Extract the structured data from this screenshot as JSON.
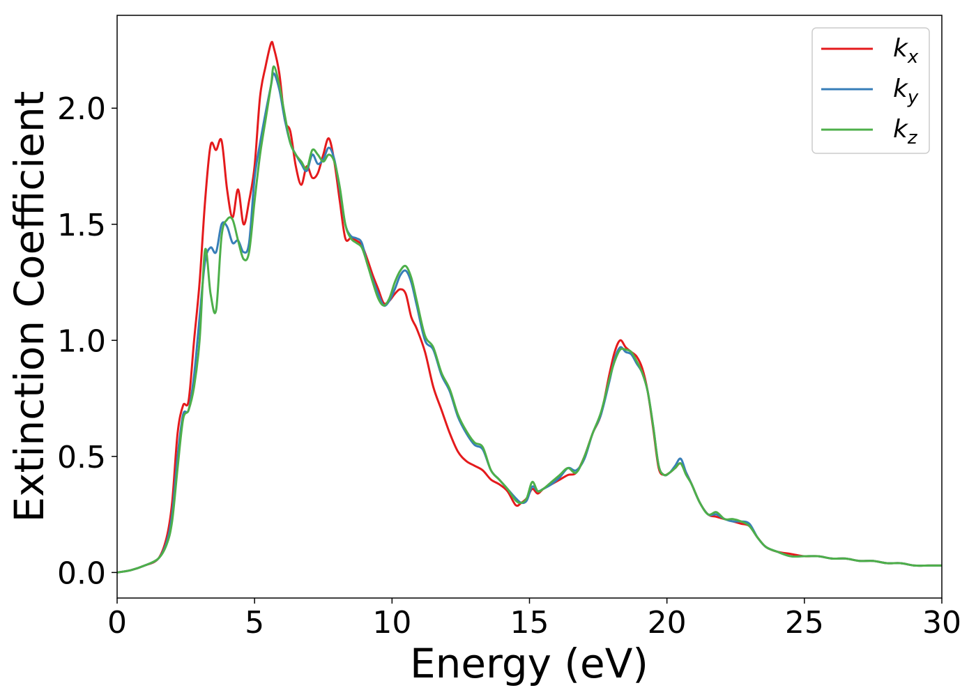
{
  "chart_data": {
    "type": "line",
    "xlabel": "Energy (eV)",
    "ylabel": "Extinction Coefficient",
    "xlim": [
      0,
      30
    ],
    "ylim": [
      -0.11,
      2.4
    ],
    "xticks": [
      0,
      5,
      10,
      15,
      20,
      25,
      30
    ],
    "xtick_labels": [
      "0",
      "5",
      "10",
      "15",
      "20",
      "25",
      "30"
    ],
    "yticks": [
      0.0,
      0.5,
      1.0,
      1.5,
      2.0
    ],
    "ytick_labels": [
      "0.0",
      "0.5",
      "1.0",
      "1.5",
      "2.0"
    ],
    "grid": false,
    "legend_position": "top-right",
    "legend": [
      {
        "base": "k",
        "sub": "x"
      },
      {
        "base": "k",
        "sub": "y"
      },
      {
        "base": "k",
        "sub": "z"
      }
    ],
    "series": [
      {
        "name": "kx",
        "color": "#e41a1c",
        "x": [
          0,
          0.5,
          1.0,
          1.5,
          1.8,
          2.0,
          2.2,
          2.4,
          2.6,
          2.8,
          3.0,
          3.2,
          3.4,
          3.6,
          3.8,
          4.0,
          4.2,
          4.4,
          4.6,
          4.8,
          5.0,
          5.2,
          5.4,
          5.6,
          5.7,
          5.9,
          6.1,
          6.3,
          6.5,
          6.7,
          6.9,
          7.1,
          7.3,
          7.5,
          7.7,
          7.9,
          8.1,
          8.3,
          8.5,
          8.7,
          8.9,
          9.1,
          9.3,
          9.5,
          9.7,
          9.9,
          10.1,
          10.3,
          10.5,
          10.7,
          10.9,
          11.2,
          11.5,
          11.8,
          12.1,
          12.4,
          12.7,
          13.0,
          13.3,
          13.6,
          13.9,
          14.2,
          14.5,
          14.7,
          14.9,
          15.1,
          15.3,
          15.5,
          15.8,
          16.1,
          16.4,
          16.7,
          17.0,
          17.3,
          17.6,
          17.9,
          18.1,
          18.3,
          18.5,
          18.7,
          18.9,
          19.1,
          19.3,
          19.5,
          19.7,
          19.9,
          20.1,
          20.3,
          20.5,
          20.7,
          20.9,
          21.2,
          21.5,
          21.8,
          22.1,
          22.4,
          22.7,
          23.0,
          23.3,
          23.6,
          24.0,
          24.5,
          25.0,
          25.5,
          26.0,
          26.5,
          27.0,
          27.5,
          28.0,
          28.5,
          29.0,
          29.5,
          30.0
        ],
        "y": [
          0.0,
          0.01,
          0.03,
          0.06,
          0.15,
          0.3,
          0.6,
          0.72,
          0.74,
          1.0,
          1.25,
          1.6,
          1.84,
          1.82,
          1.86,
          1.65,
          1.53,
          1.65,
          1.5,
          1.6,
          1.75,
          2.05,
          2.18,
          2.28,
          2.26,
          2.15,
          1.95,
          1.9,
          1.75,
          1.67,
          1.75,
          1.7,
          1.72,
          1.8,
          1.87,
          1.77,
          1.6,
          1.44,
          1.44,
          1.43,
          1.41,
          1.35,
          1.28,
          1.22,
          1.16,
          1.17,
          1.2,
          1.22,
          1.2,
          1.1,
          1.05,
          0.95,
          0.8,
          0.7,
          0.6,
          0.52,
          0.48,
          0.46,
          0.44,
          0.4,
          0.38,
          0.35,
          0.29,
          0.3,
          0.32,
          0.36,
          0.34,
          0.36,
          0.38,
          0.4,
          0.42,
          0.43,
          0.5,
          0.6,
          0.68,
          0.85,
          0.95,
          1.0,
          0.97,
          0.95,
          0.93,
          0.88,
          0.78,
          0.62,
          0.45,
          0.42,
          0.43,
          0.45,
          0.47,
          0.43,
          0.38,
          0.3,
          0.25,
          0.24,
          0.23,
          0.22,
          0.21,
          0.2,
          0.15,
          0.11,
          0.09,
          0.08,
          0.07,
          0.07,
          0.06,
          0.06,
          0.05,
          0.05,
          0.04,
          0.04,
          0.03,
          0.03,
          0.03
        ]
      },
      {
        "name": "ky",
        "color": "#377eb8",
        "x": [
          0,
          0.5,
          1.0,
          1.5,
          1.8,
          2.0,
          2.2,
          2.4,
          2.6,
          2.8,
          3.0,
          3.2,
          3.4,
          3.6,
          3.8,
          4.0,
          4.2,
          4.4,
          4.6,
          4.8,
          5.0,
          5.2,
          5.4,
          5.6,
          5.7,
          5.9,
          6.1,
          6.3,
          6.5,
          6.7,
          6.9,
          7.1,
          7.3,
          7.5,
          7.7,
          7.9,
          8.1,
          8.3,
          8.5,
          8.7,
          8.9,
          9.1,
          9.3,
          9.5,
          9.7,
          9.9,
          10.1,
          10.3,
          10.5,
          10.7,
          10.9,
          11.2,
          11.5,
          11.8,
          12.1,
          12.4,
          12.7,
          13.0,
          13.3,
          13.6,
          13.9,
          14.2,
          14.5,
          14.7,
          14.9,
          15.1,
          15.3,
          15.5,
          15.8,
          16.1,
          16.4,
          16.7,
          17.0,
          17.3,
          17.6,
          17.9,
          18.1,
          18.3,
          18.5,
          18.7,
          18.9,
          19.1,
          19.3,
          19.5,
          19.7,
          19.9,
          20.1,
          20.3,
          20.5,
          20.7,
          20.9,
          21.2,
          21.5,
          21.8,
          22.1,
          22.4,
          22.7,
          23.0,
          23.3,
          23.6,
          24.0,
          24.5,
          25.0,
          25.5,
          26.0,
          26.5,
          27.0,
          27.5,
          28.0,
          28.5,
          29.0,
          29.5,
          30.0
        ],
        "y": [
          0.0,
          0.01,
          0.03,
          0.06,
          0.13,
          0.25,
          0.5,
          0.68,
          0.7,
          0.85,
          1.1,
          1.34,
          1.4,
          1.38,
          1.5,
          1.49,
          1.42,
          1.43,
          1.38,
          1.42,
          1.7,
          1.85,
          1.98,
          2.1,
          2.15,
          2.08,
          1.95,
          1.85,
          1.8,
          1.76,
          1.73,
          1.8,
          1.76,
          1.78,
          1.83,
          1.78,
          1.65,
          1.5,
          1.45,
          1.44,
          1.42,
          1.33,
          1.26,
          1.2,
          1.15,
          1.17,
          1.22,
          1.28,
          1.3,
          1.25,
          1.15,
          1.0,
          0.96,
          0.85,
          0.78,
          0.67,
          0.6,
          0.55,
          0.53,
          0.44,
          0.4,
          0.36,
          0.32,
          0.3,
          0.31,
          0.37,
          0.35,
          0.36,
          0.38,
          0.41,
          0.45,
          0.44,
          0.49,
          0.6,
          0.68,
          0.82,
          0.92,
          0.97,
          0.95,
          0.94,
          0.9,
          0.86,
          0.78,
          0.63,
          0.46,
          0.42,
          0.43,
          0.46,
          0.49,
          0.43,
          0.38,
          0.3,
          0.25,
          0.25,
          0.23,
          0.22,
          0.22,
          0.21,
          0.15,
          0.11,
          0.09,
          0.07,
          0.07,
          0.07,
          0.06,
          0.06,
          0.05,
          0.05,
          0.04,
          0.04,
          0.03,
          0.03,
          0.03
        ]
      },
      {
        "name": "kz",
        "color": "#4daf4a",
        "x": [
          0,
          0.5,
          1.0,
          1.5,
          1.8,
          2.0,
          2.2,
          2.4,
          2.6,
          2.8,
          3.0,
          3.2,
          3.4,
          3.6,
          3.8,
          4.0,
          4.2,
          4.4,
          4.6,
          4.8,
          5.0,
          5.2,
          5.4,
          5.6,
          5.7,
          5.9,
          6.1,
          6.3,
          6.5,
          6.7,
          6.9,
          7.1,
          7.3,
          7.5,
          7.7,
          7.9,
          8.1,
          8.3,
          8.5,
          8.7,
          8.9,
          9.1,
          9.3,
          9.5,
          9.7,
          9.9,
          10.1,
          10.3,
          10.5,
          10.7,
          10.9,
          11.2,
          11.5,
          11.8,
          12.1,
          12.4,
          12.7,
          13.0,
          13.3,
          13.6,
          13.9,
          14.2,
          14.5,
          14.7,
          14.9,
          15.1,
          15.3,
          15.5,
          15.8,
          16.1,
          16.4,
          16.7,
          17.0,
          17.3,
          17.6,
          17.9,
          18.1,
          18.3,
          18.5,
          18.7,
          18.9,
          19.1,
          19.3,
          19.5,
          19.7,
          19.9,
          20.1,
          20.3,
          20.5,
          20.7,
          20.9,
          21.2,
          21.5,
          21.8,
          22.1,
          22.4,
          22.7,
          23.0,
          23.3,
          23.6,
          24.0,
          24.5,
          25.0,
          25.5,
          26.0,
          26.5,
          27.0,
          27.5,
          28.0,
          28.5,
          29.0,
          29.5,
          30.0
        ],
        "y": [
          0.0,
          0.01,
          0.03,
          0.06,
          0.12,
          0.22,
          0.45,
          0.66,
          0.7,
          0.8,
          1.0,
          1.39,
          1.2,
          1.13,
          1.45,
          1.52,
          1.52,
          1.43,
          1.35,
          1.38,
          1.6,
          1.8,
          1.95,
          2.1,
          2.18,
          2.1,
          1.97,
          1.85,
          1.8,
          1.77,
          1.74,
          1.82,
          1.8,
          1.77,
          1.8,
          1.77,
          1.66,
          1.5,
          1.44,
          1.42,
          1.4,
          1.33,
          1.25,
          1.18,
          1.15,
          1.18,
          1.25,
          1.3,
          1.32,
          1.27,
          1.17,
          1.02,
          0.97,
          0.86,
          0.79,
          0.68,
          0.61,
          0.56,
          0.54,
          0.44,
          0.4,
          0.36,
          0.31,
          0.3,
          0.32,
          0.39,
          0.35,
          0.36,
          0.39,
          0.42,
          0.45,
          0.43,
          0.5,
          0.6,
          0.69,
          0.83,
          0.91,
          0.96,
          0.96,
          0.95,
          0.91,
          0.86,
          0.78,
          0.63,
          0.46,
          0.42,
          0.43,
          0.45,
          0.47,
          0.42,
          0.38,
          0.3,
          0.25,
          0.26,
          0.23,
          0.23,
          0.22,
          0.2,
          0.15,
          0.11,
          0.09,
          0.07,
          0.07,
          0.07,
          0.06,
          0.06,
          0.05,
          0.05,
          0.04,
          0.04,
          0.03,
          0.03,
          0.03
        ]
      }
    ]
  }
}
